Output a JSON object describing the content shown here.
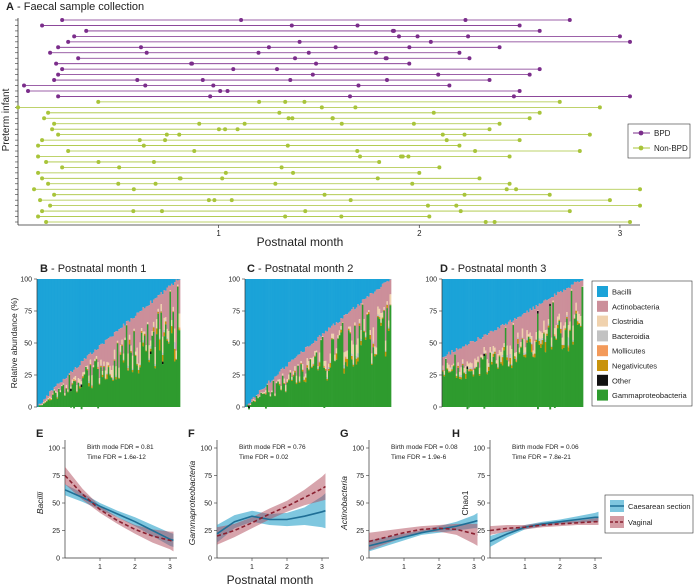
{
  "colors": {
    "bpd": "#7b2d8b",
    "nonbpd": "#a8c43a",
    "caesarean": "#2aa1c9",
    "vaginal": "#b04a5a",
    "taxa": {
      "Bacilli": "#1ba3d8",
      "Actinobacteria": "#cc8f9a",
      "Clostridia": "#f0d2ae",
      "Bacteroidia": "#c2c2c2",
      "Mollicutes": "#f39a5a",
      "Negativicutes": "#c8930c",
      "Other": "#111111",
      "Gammaproteobacteria": "#2e9b2e"
    }
  },
  "panelA": {
    "title_letter": "A",
    "title_text": "- Faecal sample collection",
    "ylabel": "Preterm infant",
    "xlabel": "Postnatal month",
    "xticks": [
      "1",
      "2",
      "3"
    ],
    "legend": [
      "BPD",
      "Non-BPD"
    ]
  },
  "bars": {
    "ylabel": "Relative abundance (%)",
    "yticks": [
      "0",
      "25",
      "50",
      "75",
      "100"
    ],
    "panels": [
      {
        "letter": "B",
        "title": "- Postnatal month 1"
      },
      {
        "letter": "C",
        "title": "- Postnatal month 2"
      },
      {
        "letter": "D",
        "title": "- Postnatal month 3"
      }
    ],
    "legend": [
      "Bacilli",
      "Actinobacteria",
      "Clostridia",
      "Bacteroidia",
      "Mollicutes",
      "Negativicutes",
      "Other",
      "Gammaproteobacteria"
    ]
  },
  "trend": {
    "xlabel": "Postnatal month",
    "xticks": [
      "1",
      "2",
      "3"
    ],
    "legend": [
      "Caesarean section",
      "Vaginal"
    ],
    "panels": [
      {
        "letter": "E",
        "ylabel": "Bacilli",
        "italic": true,
        "stat1": "Birth mode FDR = 0.81",
        "stat2": "Time FDR = 1.6e-12",
        "yticks": [
          "0",
          "25",
          "50",
          "75",
          "100"
        ]
      },
      {
        "letter": "F",
        "ylabel": "Gammaproteobacteria",
        "italic": true,
        "stat1": "Birth mode FDR = 0.76",
        "stat2": "Time FDR = 0.02",
        "yticks": [
          "0",
          "25",
          "50",
          "75",
          "100"
        ]
      },
      {
        "letter": "G",
        "ylabel": "Actinobacteria",
        "italic": true,
        "stat1": "Birth mode FDR = 0.08",
        "stat2": "Time FDR = 1.9e-6",
        "yticks": [
          "0",
          "25",
          "50",
          "75",
          "100"
        ]
      },
      {
        "letter": "H",
        "ylabel": "Chao1",
        "italic": false,
        "stat1": "Birth mode FDR = 0.06",
        "stat2": "Time FDR = 7.8e-21",
        "yticks": [
          "0",
          "25",
          "50",
          "75",
          "100"
        ]
      }
    ]
  },
  "chart_data": [
    {
      "type": "scatter",
      "panel": "A",
      "xlim": [
        0,
        3.1
      ],
      "series": [
        {
          "name": "BPD",
          "start": [
            0.22,
            0.12,
            0.34,
            0.28,
            0.25,
            0.2,
            0.16,
            0.3,
            0.19,
            0.22,
            0.2,
            0.18,
            0.03,
            0.05,
            0.2
          ],
          "end": [
            2.75,
            2.5,
            2.6,
            3.0,
            3.05,
            2.4,
            2.2,
            2.25,
            1.95,
            2.6,
            2.55,
            2.35,
            2.15,
            2.5,
            3.05
          ]
        },
        {
          "name": "Non-BPD",
          "start": [
            0.4,
            0.0,
            0.15,
            0.13,
            0.18,
            0.17,
            0.2,
            0.12,
            0.1,
            0.25,
            0.1,
            0.14,
            0.22,
            0.1,
            0.12,
            0.15,
            0.08,
            0.18,
            0.11,
            0.16,
            0.12,
            0.1,
            0.14
          ],
          "end": [
            2.7,
            2.9,
            2.6,
            2.55,
            2.4,
            2.35,
            2.85,
            2.5,
            2.2,
            2.8,
            2.45,
            1.8,
            2.1,
            2.0,
            2.3,
            2.45,
            3.1,
            2.65,
            2.95,
            3.1,
            2.75,
            2.05,
            3.05
          ]
        }
      ],
      "xticks": [
        1,
        2,
        3
      ]
    },
    {
      "type": "bar",
      "panel": "B",
      "ylim": [
        0,
        100
      ],
      "n": 95,
      "bacilli_pct_start": 100,
      "bacilli_pct_end": 0
    },
    {
      "type": "bar",
      "panel": "C",
      "ylim": [
        0,
        100
      ],
      "n": 95,
      "bacilli_pct_start": 100,
      "bacilli_pct_end": 0
    },
    {
      "type": "bar",
      "panel": "D",
      "ylim": [
        0,
        100
      ],
      "n": 92,
      "bacilli_pct_start": 60,
      "bacilli_pct_end": 0
    },
    {
      "type": "line",
      "panel": "E",
      "ylim": [
        0,
        100
      ],
      "x": [
        0,
        0.5,
        1,
        1.5,
        2,
        2.5,
        3,
        3.1
      ],
      "series": [
        {
          "name": "Caesarean section",
          "values": [
            62,
            55,
            47,
            40,
            33,
            25,
            17,
            16
          ],
          "lower": [
            57,
            51,
            44,
            37,
            29,
            20,
            11,
            10
          ],
          "upper": [
            67,
            59,
            50,
            43,
            37,
            30,
            23,
            22
          ]
        },
        {
          "name": "Vaginal",
          "values": [
            75,
            58,
            44,
            34,
            26,
            20,
            16,
            15
          ],
          "lower": [
            67,
            53,
            41,
            31,
            22,
            14,
            8,
            6
          ],
          "upper": [
            83,
            63,
            47,
            37,
            30,
            26,
            24,
            24
          ]
        }
      ]
    },
    {
      "type": "line",
      "panel": "F",
      "ylim": [
        0,
        100
      ],
      "x": [
        0,
        0.5,
        1,
        1.5,
        2,
        2.5,
        3,
        3.1
      ],
      "series": [
        {
          "name": "Caesarean section",
          "values": [
            22,
            33,
            38,
            35,
            35,
            38,
            42,
            43
          ],
          "lower": [
            14,
            27,
            33,
            30,
            29,
            30,
            28,
            27
          ],
          "upper": [
            30,
            39,
            43,
            40,
            41,
            46,
            56,
            59
          ]
        },
        {
          "name": "Vaginal",
          "values": [
            20,
            25,
            32,
            40,
            47,
            55,
            63,
            65
          ],
          "lower": [
            12,
            19,
            27,
            35,
            42,
            48,
            52,
            53
          ],
          "upper": [
            28,
            31,
            37,
            45,
            52,
            62,
            74,
            77
          ]
        }
      ]
    },
    {
      "type": "line",
      "panel": "G",
      "ylim": [
        0,
        100
      ],
      "x": [
        0,
        0.5,
        1,
        1.5,
        2,
        2.5,
        3,
        3.1
      ],
      "series": [
        {
          "name": "Caesarean section",
          "values": [
            11,
            15,
            19,
            23,
            26,
            29,
            33,
            34
          ],
          "lower": [
            6,
            11,
            16,
            21,
            23,
            25,
            27,
            27
          ],
          "upper": [
            16,
            19,
            22,
            25,
            29,
            33,
            39,
            41
          ]
        },
        {
          "name": "Vaginal",
          "values": [
            15,
            19,
            23,
            26,
            27,
            26,
            22,
            21
          ],
          "lower": [
            7,
            13,
            19,
            23,
            24,
            21,
            13,
            11
          ],
          "upper": [
            23,
            25,
            27,
            29,
            30,
            31,
            31,
            31
          ]
        }
      ]
    },
    {
      "type": "line",
      "panel": "H",
      "ylim": [
        0,
        100
      ],
      "x": [
        0,
        0.5,
        1,
        1.5,
        2,
        2.5,
        3,
        3.1
      ],
      "series": [
        {
          "name": "Caesarean section",
          "values": [
            15,
            22,
            28,
            31,
            33,
            35,
            37,
            37
          ],
          "lower": [
            10,
            19,
            26,
            29,
            31,
            32,
            33,
            33
          ],
          "upper": [
            20,
            25,
            30,
            33,
            35,
            38,
            41,
            42
          ]
        },
        {
          "name": "Vaginal",
          "values": [
            25,
            27,
            28,
            30,
            31,
            32,
            33,
            33
          ],
          "lower": [
            21,
            24,
            26,
            28,
            29,
            30,
            30,
            30
          ],
          "upper": [
            29,
            30,
            30,
            32,
            33,
            34,
            36,
            37
          ]
        }
      ]
    }
  ]
}
